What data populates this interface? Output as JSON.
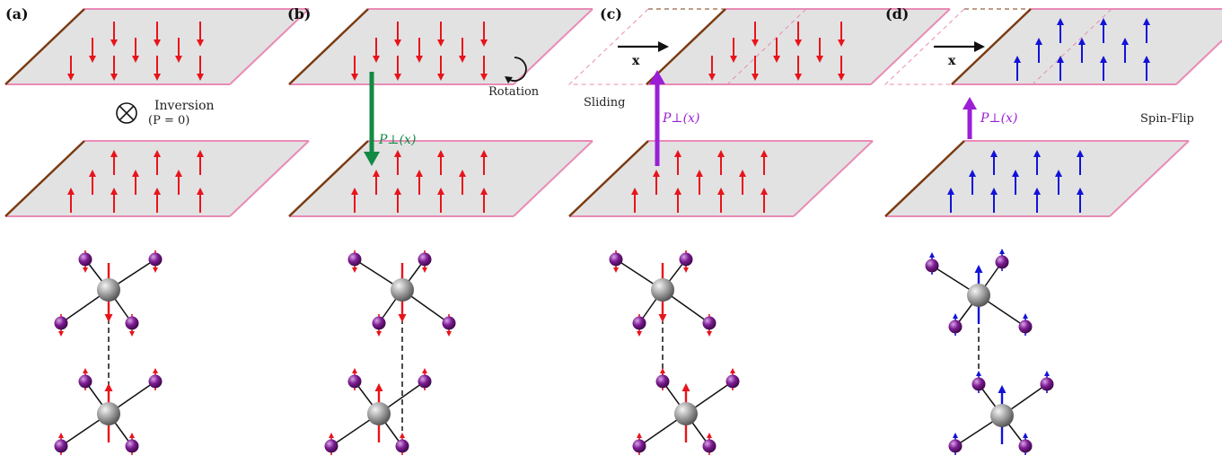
{
  "colors": {
    "spin_red": "#e8141b",
    "spin_blue": "#1212d8",
    "plate_fill": "#e2e2e2",
    "plate_edge_pink": "#e98bb6",
    "plate_edge_brown": "#7a3b12",
    "arrow_green": "#138a44",
    "arrow_purple": "#9a1fd6",
    "atom_gray": "#9a9a9a",
    "atom_purple": "#7a1a8e"
  },
  "icons": [
    "otimes-icon",
    "rotation-icon"
  ],
  "panels": [
    {
      "label": "(a)",
      "annotation": "Inversion",
      "annotation_sub": "(P = 0)",
      "spin_color": "red",
      "top_spin": "down",
      "bottom_spin": "up",
      "polarization": "",
      "shift": false
    },
    {
      "label": "(b)",
      "annotation": "Rotation",
      "spin_color": "red",
      "top_spin": "down",
      "bottom_spin": "up",
      "polarization": "P⊥(x)",
      "shift": false
    },
    {
      "label": "(c)",
      "annotation": "Sliding",
      "spin_color": "red",
      "top_spin": "down",
      "bottom_spin": "up",
      "polarization": "P⊥(x)",
      "shift_label": "x",
      "shift": true
    },
    {
      "label": "(d)",
      "annotation": "Spin-Flip",
      "spin_color": "blue",
      "top_spin": "up",
      "bottom_spin": "up",
      "polarization": "P⊥(x)",
      "shift_label": "x",
      "shift": true
    }
  ]
}
